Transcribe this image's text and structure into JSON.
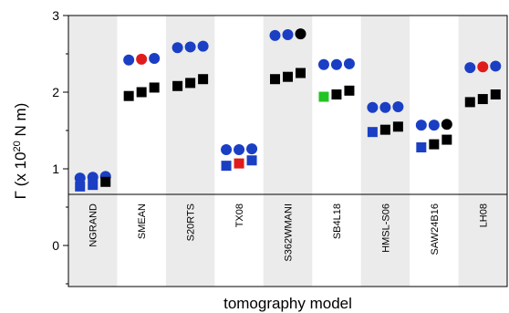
{
  "chart_data": {
    "type": "scatter",
    "xlabel": "tomography model",
    "ylabel": {
      "prefix": "Γ (x 10",
      "sup": "20",
      "suffix": " N m)"
    },
    "ylim": [
      -0.5,
      3.0
    ],
    "yticks": [
      0,
      1,
      2,
      3
    ],
    "ytick_labels": [
      "0",
      "1",
      "2",
      "3"
    ],
    "grid": false,
    "categories": [
      "NGRAND",
      "SMEAN",
      "S20RTS",
      "TX08",
      "S362WMANI",
      "SB4L18",
      "HMSL-S06",
      "SAW24B16",
      "LH08"
    ],
    "series": [
      {
        "marker": "circle",
        "values": [
          [
            0.88,
            0.89,
            0.9
          ],
          [
            2.42,
            2.43,
            2.44
          ],
          [
            2.58,
            2.59,
            2.6
          ],
          [
            1.25,
            1.25,
            1.26
          ],
          [
            2.74,
            2.75,
            2.76
          ],
          [
            2.36,
            2.36,
            2.37
          ],
          [
            1.8,
            1.8,
            1.81
          ],
          [
            1.57,
            1.57,
            1.58
          ],
          [
            2.32,
            2.33,
            2.34
          ]
        ],
        "colors": [
          [
            "#1a3fc4",
            "#1a3fc4",
            "#1a3fc4"
          ],
          [
            "#1a3fc4",
            "#e01b1b",
            "#1a3fc4"
          ],
          [
            "#1a3fc4",
            "#1a3fc4",
            "#1a3fc4"
          ],
          [
            "#1a3fc4",
            "#1a3fc4",
            "#1a3fc4"
          ],
          [
            "#1a3fc4",
            "#1a3fc4",
            "#000000"
          ],
          [
            "#1a3fc4",
            "#1a3fc4",
            "#1a3fc4"
          ],
          [
            "#1a3fc4",
            "#1a3fc4",
            "#1a3fc4"
          ],
          [
            "#1a3fc4",
            "#1a3fc4",
            "#000000"
          ],
          [
            "#1a3fc4",
            "#e01b1b",
            "#1a3fc4"
          ]
        ]
      },
      {
        "marker": "square",
        "values": [
          [
            0.77,
            0.79,
            0.83
          ],
          [
            1.95,
            2.0,
            2.06
          ],
          [
            2.08,
            2.12,
            2.17
          ],
          [
            1.04,
            1.07,
            1.11
          ],
          [
            2.17,
            2.2,
            2.25
          ],
          [
            1.94,
            1.97,
            2.02
          ],
          [
            1.48,
            1.51,
            1.55
          ],
          [
            1.28,
            1.32,
            1.38
          ],
          [
            1.87,
            1.91,
            1.97
          ]
        ],
        "colors": [
          [
            "#1a3fc4",
            "#1a3fc4",
            "#000000"
          ],
          [
            "#000000",
            "#000000",
            "#000000"
          ],
          [
            "#000000",
            "#000000",
            "#000000"
          ],
          [
            "#1a3fc4",
            "#e01b1b",
            "#1a3fc4"
          ],
          [
            "#000000",
            "#000000",
            "#000000"
          ],
          [
            "#22c422",
            "#000000",
            "#000000"
          ],
          [
            "#1a3fc4",
            "#000000",
            "#000000"
          ],
          [
            "#1a3fc4",
            "#000000",
            "#000000"
          ],
          [
            "#000000",
            "#000000",
            "#000000"
          ]
        ]
      }
    ],
    "band_color": "#ebebeb"
  }
}
